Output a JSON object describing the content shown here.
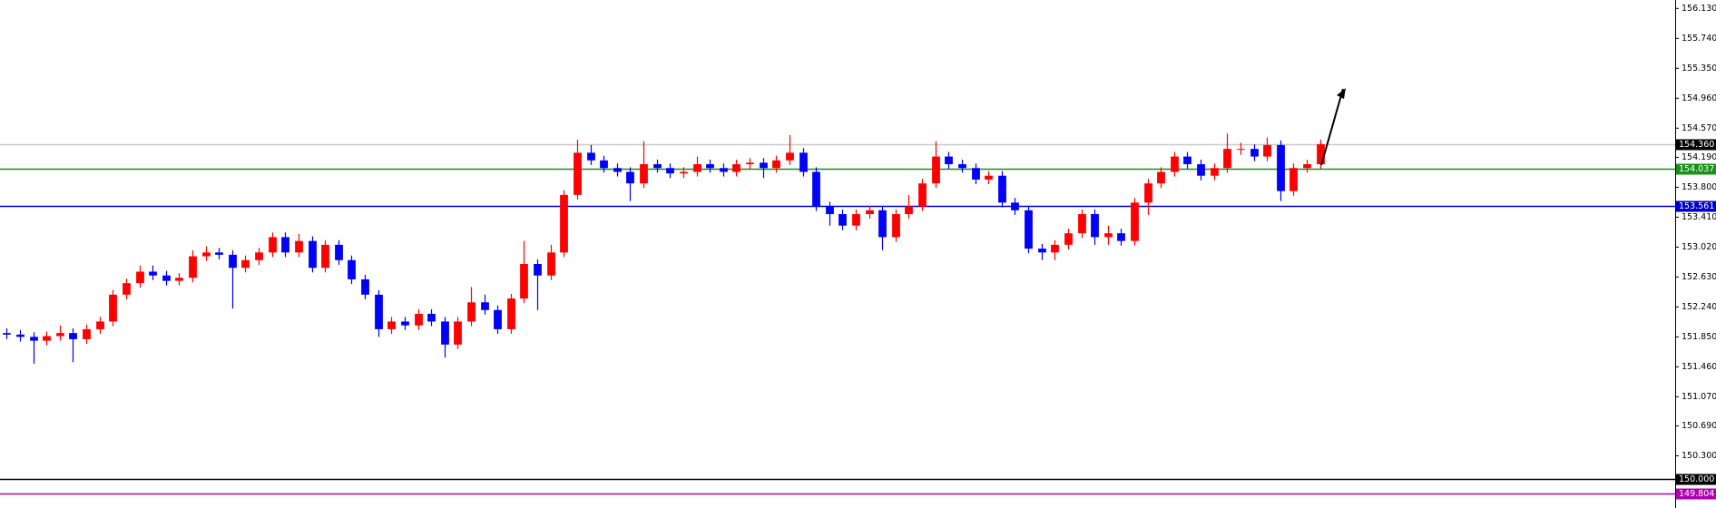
{
  "chart_data": {
    "type": "candlestick",
    "up_color": "#ff0000",
    "down_color": "#0000ff",
    "open": [
      151.9,
      151.88,
      151.85,
      151.8,
      151.86,
      151.9,
      151.82,
      151.95,
      152.05,
      152.4,
      152.55,
      152.7,
      152.65,
      152.58,
      152.62,
      152.9,
      152.95,
      152.92,
      152.75,
      152.85,
      152.95,
      153.15,
      152.95,
      153.1,
      152.75,
      153.05,
      152.85,
      152.6,
      152.4,
      151.95,
      152.05,
      152.0,
      152.15,
      152.05,
      151.75,
      152.05,
      152.3,
      152.2,
      151.95,
      152.35,
      152.8,
      152.65,
      152.95,
      153.7,
      154.25,
      154.15,
      154.05,
      154.0,
      153.85,
      154.1,
      154.05,
      153.98,
      154.0,
      154.1,
      154.05,
      154.0,
      154.1,
      154.12,
      154.05,
      154.15,
      154.25,
      154.0,
      153.55,
      153.45,
      153.3,
      153.45,
      153.5,
      153.15,
      153.45,
      153.55,
      153.85,
      154.2,
      154.1,
      154.05,
      153.9,
      153.95,
      153.6,
      153.5,
      153.0,
      152.95,
      153.05,
      153.2,
      153.45,
      153.15,
      153.2,
      153.1,
      153.6,
      153.85,
      154.0,
      154.2,
      154.1,
      153.95,
      154.05,
      154.3,
      154.3,
      154.2,
      154.35,
      153.75,
      154.05,
      154.1
    ],
    "high": [
      151.96,
      151.94,
      151.91,
      151.92,
      152.0,
      151.96,
      152.01,
      152.11,
      152.46,
      152.61,
      152.78,
      152.78,
      152.71,
      152.68,
      152.98,
      153.03,
      153.01,
      152.98,
      152.91,
      153.01,
      153.21,
      153.21,
      153.19,
      153.16,
      153.11,
      153.11,
      152.91,
      152.66,
      152.46,
      152.11,
      152.11,
      152.21,
      152.21,
      152.11,
      152.11,
      152.5,
      152.4,
      152.26,
      152.41,
      153.1,
      152.86,
      153.05,
      153.76,
      154.42,
      154.35,
      154.21,
      154.11,
      154.06,
      154.4,
      154.16,
      154.11,
      154.06,
      154.2,
      154.16,
      154.11,
      154.16,
      154.18,
      154.18,
      154.21,
      154.48,
      154.31,
      154.06,
      153.61,
      153.51,
      153.51,
      153.56,
      153.56,
      153.51,
      153.7,
      153.91,
      154.4,
      154.26,
      154.16,
      154.11,
      154.01,
      154.01,
      153.66,
      153.56,
      153.06,
      153.11,
      153.26,
      153.51,
      153.51,
      153.3,
      153.26,
      153.66,
      153.91,
      154.06,
      154.26,
      154.26,
      154.16,
      154.11,
      154.5,
      154.38,
      154.36,
      154.45,
      154.41,
      154.11,
      154.16,
      154.42
    ],
    "low": [
      151.82,
      151.79,
      151.5,
      151.74,
      151.8,
      151.52,
      151.76,
      151.89,
      151.99,
      152.34,
      152.49,
      152.59,
      152.52,
      152.52,
      152.56,
      152.84,
      152.86,
      152.22,
      152.69,
      152.79,
      152.89,
      152.89,
      152.89,
      152.69,
      152.69,
      152.79,
      152.54,
      152.34,
      151.85,
      151.89,
      151.94,
      151.94,
      151.99,
      151.58,
      151.69,
      151.99,
      152.14,
      151.89,
      151.89,
      152.29,
      152.2,
      152.59,
      152.89,
      153.64,
      154.09,
      153.99,
      153.94,
      153.62,
      153.79,
      153.99,
      153.92,
      153.92,
      153.94,
      153.99,
      153.94,
      153.94,
      154.04,
      153.92,
      153.99,
      154.09,
      153.94,
      153.49,
      153.3,
      153.24,
      153.24,
      153.39,
      152.98,
      153.09,
      153.39,
      153.49,
      153.79,
      154.04,
      153.99,
      153.84,
      153.84,
      153.54,
      153.44,
      152.94,
      152.85,
      152.85,
      152.99,
      153.14,
      153.05,
      153.05,
      153.04,
      153.04,
      153.44,
      153.79,
      153.94,
      154.04,
      153.89,
      153.89,
      153.99,
      154.22,
      154.14,
      154.14,
      153.62,
      153.69,
      153.99,
      154.04
    ],
    "close": [
      151.88,
      151.85,
      151.8,
      151.86,
      151.9,
      151.82,
      151.95,
      152.05,
      152.4,
      152.55,
      152.7,
      152.65,
      152.58,
      152.62,
      152.9,
      152.95,
      152.92,
      152.75,
      152.85,
      152.95,
      153.15,
      152.95,
      153.1,
      152.75,
      153.05,
      152.85,
      152.6,
      152.4,
      151.95,
      152.05,
      152.0,
      152.15,
      152.05,
      151.75,
      152.05,
      152.3,
      152.2,
      151.95,
      152.35,
      152.8,
      152.65,
      152.95,
      153.7,
      154.25,
      154.15,
      154.05,
      154.0,
      153.85,
      154.1,
      154.05,
      153.98,
      154.0,
      154.1,
      154.05,
      154.0,
      154.1,
      154.12,
      154.05,
      154.15,
      154.25,
      154.0,
      153.55,
      153.45,
      153.3,
      153.45,
      153.5,
      153.15,
      153.45,
      153.55,
      153.85,
      154.2,
      154.1,
      154.05,
      153.9,
      153.95,
      153.6,
      153.5,
      153.0,
      152.95,
      153.05,
      153.2,
      153.45,
      153.15,
      153.2,
      153.1,
      153.6,
      153.85,
      154.0,
      154.2,
      154.1,
      153.95,
      154.05,
      154.3,
      154.3,
      154.2,
      154.35,
      153.75,
      154.05,
      154.1,
      154.36
    ],
    "ylim": [
      149.62,
      156.24
    ],
    "yticks": [
      {
        "value": 156.13,
        "label": "156.130"
      },
      {
        "value": 155.74,
        "label": "155.740"
      },
      {
        "value": 155.35,
        "label": "155.350"
      },
      {
        "value": 154.96,
        "label": "154.960"
      },
      {
        "value": 154.57,
        "label": "154.570"
      },
      {
        "value": 154.19,
        "label": "154.190"
      },
      {
        "value": 153.8,
        "label": "153.800"
      },
      {
        "value": 153.41,
        "label": "153.410"
      },
      {
        "value": 153.02,
        "label": "153.020"
      },
      {
        "value": 152.63,
        "label": "152.630"
      },
      {
        "value": 152.24,
        "label": "152.240"
      },
      {
        "value": 151.85,
        "label": "151.850"
      },
      {
        "value": 151.46,
        "label": "151.460"
      },
      {
        "value": 151.07,
        "label": "151.070"
      },
      {
        "value": 150.69,
        "label": "150.690"
      },
      {
        "value": 150.3,
        "label": "150.300"
      }
    ],
    "levels": [
      {
        "value": 154.36,
        "label": "154.360",
        "color": "#c8c8c8",
        "label_color": "#000000"
      },
      {
        "value": 154.037,
        "label": "154.037",
        "color": "#1a8f1a",
        "label_color": "#1a8f1a"
      },
      {
        "value": 153.561,
        "label": "153.561",
        "color": "#0000c8",
        "label_color": "#0000c8"
      },
      {
        "value": 150.0,
        "label": "150.000",
        "color": "#000000",
        "label_color": "#000000"
      },
      {
        "value": 149.804,
        "label": "149.804",
        "color": "#b000b0",
        "label_color": "#b000b0"
      }
    ]
  }
}
